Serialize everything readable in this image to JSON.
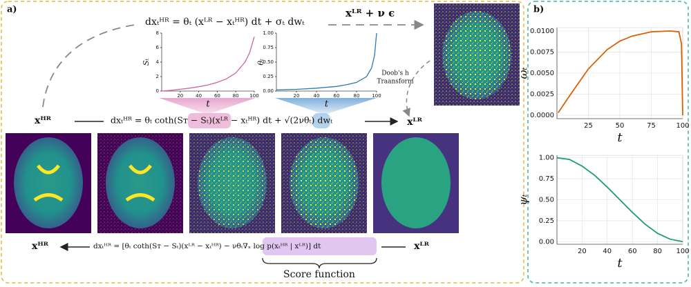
{
  "figure": {
    "panel_a": "a)",
    "panel_b": "b)",
    "top_equation": "dxₜᴴᴿ = θₜ (xᴸᴿ − xₜᴴᴿ) dt + σₜ dwₜ",
    "top_target": "xᴸᴿ + ν ϵ",
    "doob_line1": "Doob's h",
    "doob_line2": "Traansform",
    "mid_left": "xᴴᴿ",
    "mid_equation": "dxₜᴴᴿ = θₜ coth(Sᴛ − Sₜ)(xᴸᴿ − xₜᴴᴿ) dt + √(2νθₜ) dwₜ",
    "mid_right": "xᴸᴿ",
    "bottom_left": "xᴴᴿ",
    "bottom_equation": "dxₜᴴᴿ = [θₜ coth(Sᴛ − Sₜ)(xᴸᴿ − xₜᴴᴿ) − νθₜ∇ₓ log p(xₜᴴᴿ | xᴸᴿ)] dt",
    "bottom_right": "xᴸᴿ",
    "score_label": "Score function"
  },
  "chart_data": [
    {
      "type": "line",
      "x": [
        0,
        10,
        20,
        30,
        40,
        50,
        60,
        70,
        80,
        90,
        95,
        100
      ],
      "values": [
        0.0,
        0.1,
        0.25,
        0.4,
        0.6,
        0.85,
        1.2,
        1.7,
        2.5,
        4.0,
        5.3,
        7.5
      ],
      "color": "#c9679e",
      "xlim": [
        0,
        100
      ],
      "ylim": [
        0,
        8
      ],
      "xticks": [
        20,
        40,
        60,
        80,
        100
      ],
      "yticks": [
        0,
        2,
        4,
        6,
        8
      ],
      "xlabel": "t",
      "ylabel": "Sₜ",
      "grid": false
    },
    {
      "type": "line",
      "x": [
        0,
        20,
        40,
        60,
        70,
        80,
        90,
        95,
        98,
        100
      ],
      "values": [
        0.02,
        0.03,
        0.05,
        0.08,
        0.11,
        0.15,
        0.25,
        0.4,
        0.62,
        1.0
      ],
      "color": "#2a7ab0",
      "xlim": [
        0,
        100
      ],
      "ylim": [
        0,
        1
      ],
      "xticks": [
        20,
        40,
        60,
        80,
        100
      ],
      "yticks": [
        {
          "value": 0,
          "label": "0.00"
        },
        {
          "value": 0.25,
          "label": "0.25"
        },
        {
          "value": 0.5,
          "label": "0.50"
        },
        {
          "value": 0.75,
          "label": "0.75"
        },
        {
          "value": 1,
          "label": "1.00"
        }
      ],
      "xlabel": "t",
      "ylabel": "θₜ",
      "grid": false
    },
    {
      "type": "line",
      "x": [
        1,
        10,
        25,
        40,
        50,
        60,
        75,
        90,
        97,
        99,
        100
      ],
      "values": [
        0.0003,
        0.0023,
        0.0055,
        0.0078,
        0.0088,
        0.0094,
        0.0099,
        0.01,
        0.0099,
        0.0085,
        0.0
      ],
      "color": "#d95f02",
      "xlim": [
        0,
        100
      ],
      "ylim": [
        -0.0004,
        0.0104
      ],
      "xticks": [
        25,
        50,
        75,
        100
      ],
      "yticks": [
        {
          "value": 0,
          "label": "0.0000"
        },
        {
          "value": 0.0025,
          "label": "0.0025"
        },
        {
          "value": 0.005,
          "label": "0.0050"
        },
        {
          "value": 0.0075,
          "label": "0.0075"
        },
        {
          "value": 0.01,
          "label": "0.0100"
        }
      ],
      "xlabel": "t",
      "ylabel": "ωₜ",
      "grid": true
    },
    {
      "type": "line",
      "x": [
        0,
        10,
        20,
        30,
        40,
        50,
        60,
        70,
        80,
        90,
        100
      ],
      "values": [
        1.0,
        0.98,
        0.9,
        0.79,
        0.65,
        0.5,
        0.35,
        0.21,
        0.1,
        0.03,
        0.0
      ],
      "color": "#1b9e77",
      "xlim": [
        0,
        100
      ],
      "ylim": [
        -0.03,
        1.03
      ],
      "xticks": [
        20,
        40,
        60,
        80,
        100
      ],
      "yticks": [
        {
          "value": 0,
          "label": "0.00"
        },
        {
          "value": 0.25,
          "label": "0.25"
        },
        {
          "value": 0.5,
          "label": "0.50"
        },
        {
          "value": 0.75,
          "label": "0.75"
        },
        {
          "value": 1,
          "label": "1.00"
        }
      ],
      "xlabel": "t",
      "ylabel": "ψₜ",
      "grid": true
    }
  ]
}
